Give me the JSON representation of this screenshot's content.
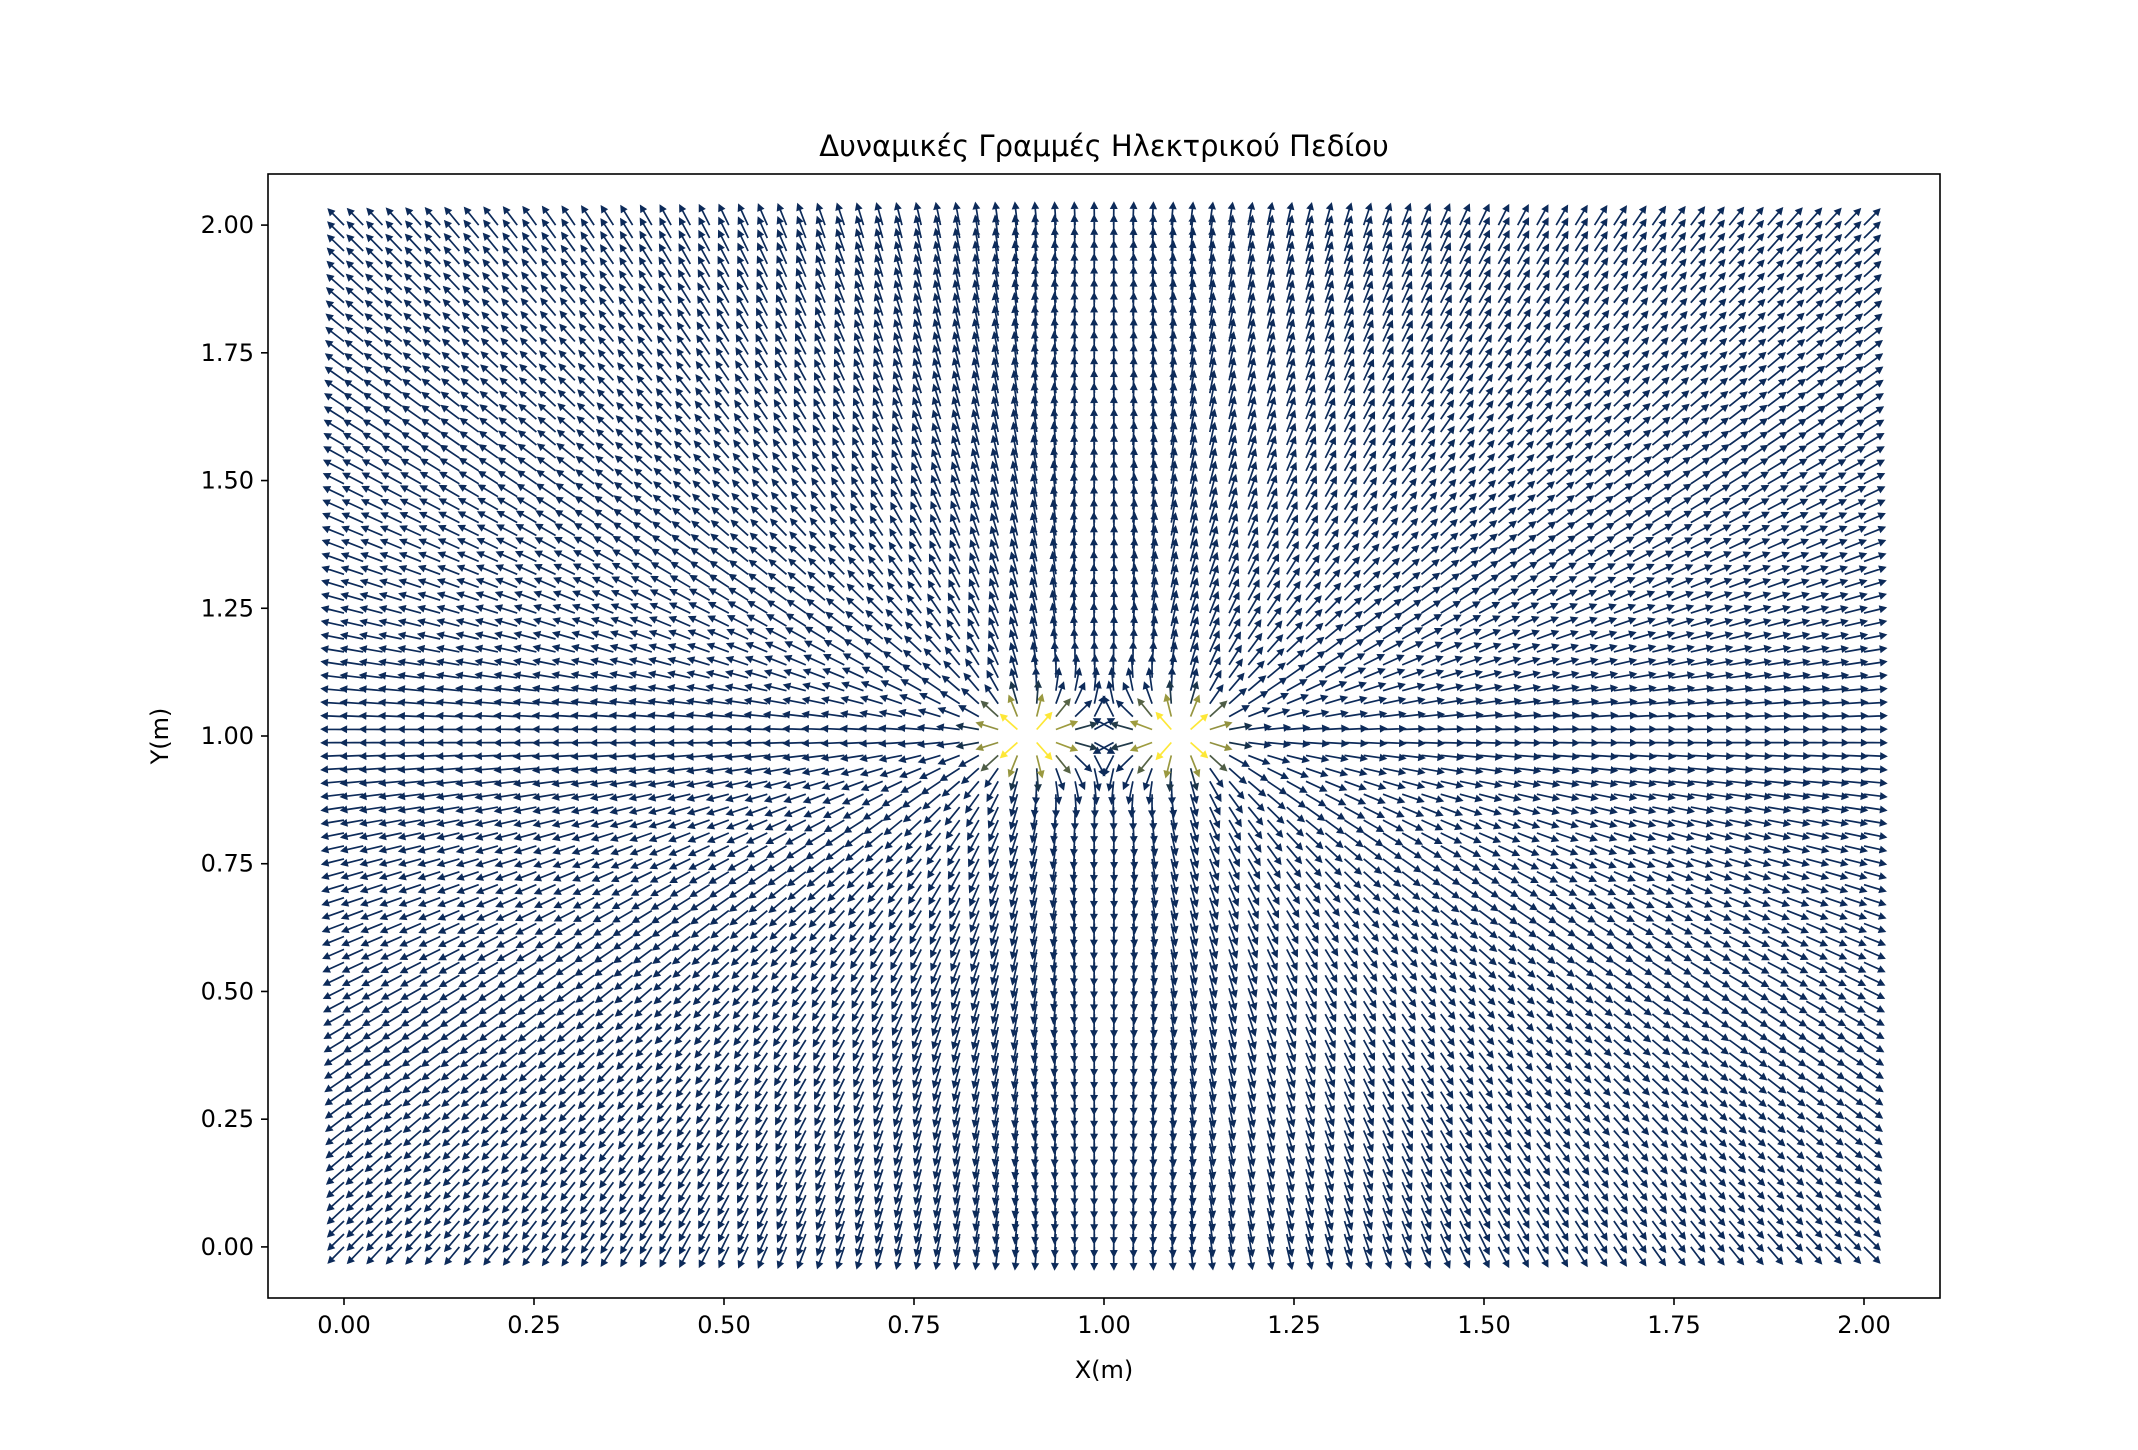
{
  "chart_data": {
    "type": "quiver",
    "title": "Δυναμικές Γραμμές Ηλεκτρικού Πεδίου",
    "xlabel": "X(m)",
    "ylabel": "Y(m)",
    "xlim": [
      -0.1,
      2.1
    ],
    "ylim": [
      -0.1,
      2.1
    ],
    "xticks": [
      0.0,
      0.25,
      0.5,
      0.75,
      1.0,
      1.25,
      1.5,
      1.75,
      2.0
    ],
    "xtick_labels": [
      "0.00",
      "0.25",
      "0.50",
      "0.75",
      "1.00",
      "1.25",
      "1.50",
      "1.75",
      "2.00"
    ],
    "yticks": [
      0.0,
      0.25,
      0.5,
      0.75,
      1.0,
      1.25,
      1.5,
      1.75,
      2.0
    ],
    "ytick_labels": [
      "0.00",
      "0.25",
      "0.50",
      "0.75",
      "1.00",
      "1.25",
      "1.50",
      "1.75",
      "2.00"
    ],
    "grid": false,
    "charges": [
      {
        "x": 0.9,
        "y": 1.0
      },
      {
        "x": 1.1,
        "y": 1.0
      }
    ],
    "grid_range": {
      "start": 0.0,
      "stop": 2.0,
      "n": 80
    },
    "colormap": {
      "low": "#00204d",
      "high": "#fde737"
    },
    "arrow_color": "#0d2b5a"
  }
}
